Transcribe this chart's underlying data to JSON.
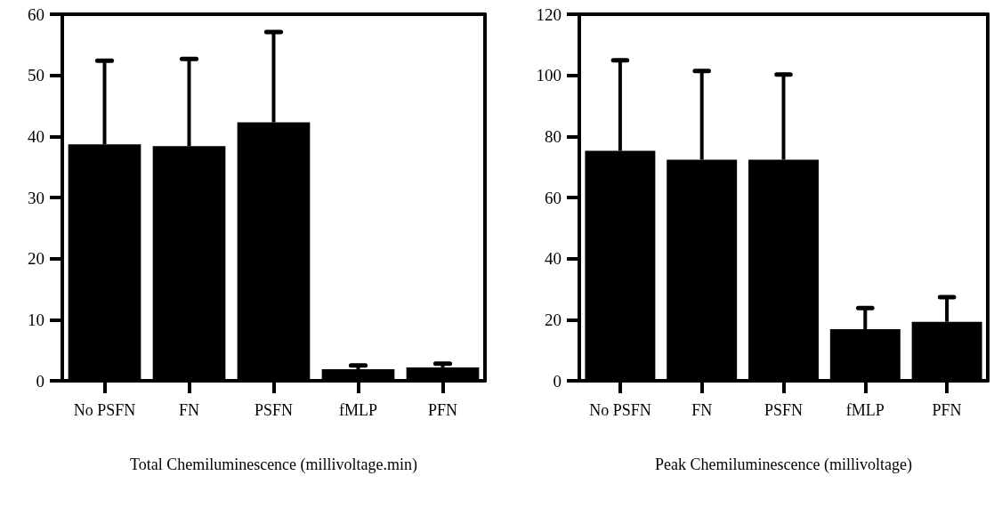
{
  "chart_data": [
    {
      "type": "bar",
      "xlabel": "Total Chemiluminescence (millivoltage.min)",
      "categories": [
        "No PSFN",
        "FN",
        "PSFN",
        "fMLP",
        "PFN"
      ],
      "values": [
        38.7,
        38.4,
        42.3,
        1.9,
        2.2
      ],
      "color": "#000000",
      "errors": [
        [
          38.7,
          52.4
        ],
        [
          38.4,
          52.7
        ],
        [
          42.3,
          57.1
        ],
        [
          1.9,
          2.5
        ],
        [
          2.2,
          2.8
        ]
      ],
      "ylim": [
        0,
        60
      ],
      "yticks": [
        0,
        10,
        20,
        30,
        40,
        50,
        60
      ]
    },
    {
      "type": "bar",
      "xlabel": "Peak Chemiluminescence (millivoltage)",
      "categories": [
        "No PSFN",
        "FN",
        "PSFN",
        "fMLP",
        "PFN"
      ],
      "values": [
        75.3,
        72.4,
        72.4,
        16.9,
        19.3
      ],
      "color": "#000000",
      "errors": [
        [
          75.3,
          104.9
        ],
        [
          72.4,
          101.4
        ],
        [
          72.4,
          100.3
        ],
        [
          16.9,
          23.8
        ],
        [
          19.3,
          27.4
        ]
      ],
      "ylim": [
        0,
        120
      ],
      "yticks": [
        0,
        20,
        40,
        60,
        80,
        100,
        120
      ]
    }
  ]
}
